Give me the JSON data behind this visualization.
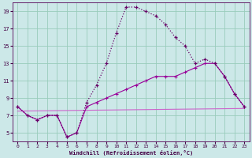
{
  "xlabel": "Windchill (Refroidissement éolien,°C)",
  "background_color": "#cce8e8",
  "grid_color": "#99ccbb",
  "line_color_temp": "#660066",
  "line_color_wc": "#990099",
  "line_color_flat": "#cc66cc",
  "hours": [
    0,
    1,
    2,
    3,
    4,
    5,
    6,
    7,
    8,
    9,
    10,
    11,
    12,
    13,
    14,
    15,
    16,
    17,
    18,
    19,
    20,
    21,
    22,
    23
  ],
  "temp": [
    8.0,
    7.0,
    6.5,
    7.0,
    7.0,
    4.5,
    5.0,
    8.5,
    10.5,
    13.0,
    16.5,
    19.5,
    19.5,
    19.0,
    18.5,
    17.5,
    16.0,
    15.0,
    13.0,
    13.5,
    13.0,
    11.5,
    9.5,
    8.0
  ],
  "windchill": [
    8.0,
    7.0,
    6.5,
    7.0,
    7.0,
    4.5,
    5.0,
    8.0,
    8.5,
    9.0,
    9.5,
    10.0,
    10.5,
    11.0,
    11.5,
    11.5,
    11.5,
    12.0,
    12.5,
    13.0,
    13.0,
    11.5,
    9.5,
    8.0
  ],
  "flat_line_x": [
    0,
    23
  ],
  "flat_line_y": [
    7.5,
    7.8
  ],
  "ylim": [
    4,
    20
  ],
  "xlim_min": -0.5,
  "xlim_max": 23.5,
  "yticks": [
    5,
    7,
    9,
    11,
    13,
    15,
    17,
    19
  ],
  "xticks": [
    0,
    1,
    2,
    3,
    4,
    5,
    6,
    7,
    8,
    9,
    10,
    11,
    12,
    13,
    14,
    15,
    16,
    17,
    18,
    19,
    20,
    21,
    22,
    23
  ]
}
